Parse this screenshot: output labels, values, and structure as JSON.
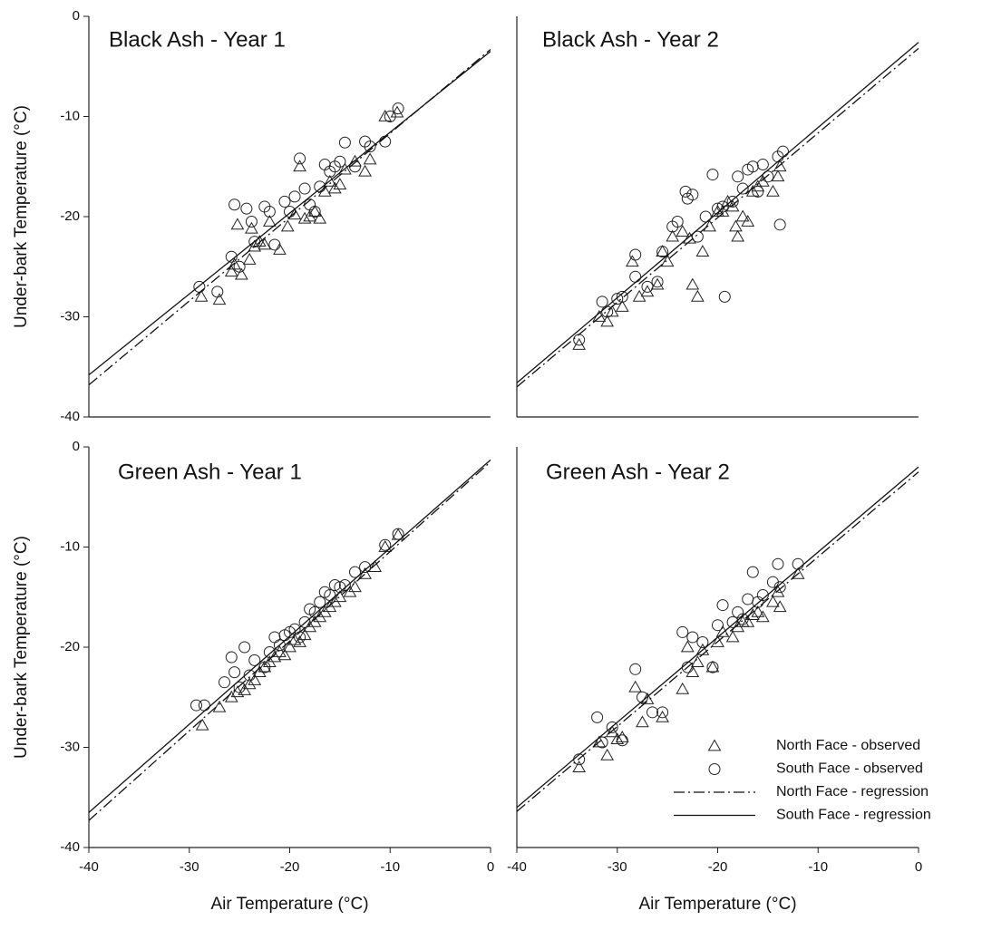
{
  "chart_data": [
    {
      "type": "scatter",
      "title": "Black Ash - Year 1",
      "ylabel": "Under-bark Temperature (°C)",
      "xlim": [
        -40,
        0
      ],
      "ylim": [
        -40,
        0
      ],
      "yticks": [
        0,
        -10,
        -20,
        -30,
        -40
      ],
      "series": [
        {
          "marker": "triangle",
          "x": [
            -28.8,
            -27,
            -25.8,
            -25.2,
            -24.8,
            -24,
            -23.5,
            -23,
            -22.5,
            -22,
            -21,
            -20.2,
            -19.5,
            -19,
            -18.5,
            -18,
            -17.5,
            -17,
            -16.5,
            -16,
            -15.5,
            -15,
            -14.5,
            -13.5,
            -12.5,
            -12,
            -10.5,
            -9.3,
            -25.5,
            -23.8
          ],
          "values": [
            -28,
            -28.3,
            -25.5,
            -20.8,
            -25.8,
            -24.3,
            -23,
            -22.5,
            -22.8,
            -20.5,
            -23.3,
            -21,
            -19.8,
            -15,
            -20.2,
            -20,
            -19.5,
            -20.2,
            -17.5,
            -16.5,
            -17.2,
            -16.8,
            -15.3,
            -14.5,
            -15.5,
            -14.3,
            -10,
            -9.6,
            -24.8,
            -21.2
          ]
        },
        {
          "marker": "circle",
          "x": [
            -29,
            -27.2,
            -25.8,
            -25.5,
            -25,
            -24.3,
            -23.5,
            -22.5,
            -22,
            -21.5,
            -20.5,
            -20,
            -19.5,
            -19,
            -18.5,
            -18,
            -17.5,
            -17,
            -16.5,
            -16,
            -15.5,
            -15,
            -14.5,
            -13.5,
            -12.5,
            -12,
            -10.5,
            -10,
            -9.2,
            -23.8
          ],
          "values": [
            -27,
            -27.5,
            -24,
            -18.8,
            -25,
            -19.2,
            -22.5,
            -19,
            -19.5,
            -22.8,
            -18.5,
            -19.5,
            -18,
            -14.2,
            -17.2,
            -18.8,
            -19.5,
            -17,
            -14.8,
            -15.5,
            -15,
            -14.5,
            -12.6,
            -15,
            -12.5,
            -13,
            -12.5,
            -10,
            -9.2,
            -20.5
          ]
        },
        {
          "style": "dashdot",
          "x": [
            -40,
            0
          ],
          "values": [
            -36.8,
            -3.3
          ]
        },
        {
          "style": "solid",
          "x": [
            -40,
            0
          ],
          "values": [
            -35.8,
            -3.5
          ]
        }
      ]
    },
    {
      "type": "scatter",
      "title": "Black Ash - Year 2",
      "xlim": [
        -40,
        0
      ],
      "ylim": [
        -40,
        0
      ],
      "series": [
        {
          "marker": "triangle",
          "x": [
            -33.8,
            -31.8,
            -31,
            -30.5,
            -29.5,
            -28.5,
            -27.8,
            -27,
            -26,
            -25.5,
            -25,
            -24.5,
            -23.5,
            -22.8,
            -22,
            -21.5,
            -20.8,
            -20,
            -19.5,
            -19,
            -18.5,
            -18,
            -17.5,
            -17,
            -16.5,
            -16,
            -15.5,
            -14.5,
            -14,
            -13.8,
            -22.5,
            -18.2
          ],
          "values": [
            -32.8,
            -30,
            -30.5,
            -29.5,
            -29,
            -24.5,
            -28,
            -27.5,
            -26.8,
            -23.5,
            -24.5,
            -22,
            -21.5,
            -22.2,
            -28,
            -23.5,
            -21,
            -19.5,
            -19.5,
            -18.5,
            -19,
            -22,
            -20,
            -20.5,
            -17.5,
            -17,
            -16.5,
            -17.5,
            -16,
            -15,
            -26.8,
            -21
          ]
        },
        {
          "marker": "circle",
          "x": [
            -33.8,
            -31.5,
            -31,
            -30,
            -29.5,
            -28.2,
            -27,
            -26,
            -25.5,
            -24.5,
            -24,
            -23.2,
            -23,
            -22.5,
            -22,
            -21.2,
            -20.5,
            -20,
            -19.5,
            -19.3,
            -18.5,
            -18,
            -17.5,
            -17,
            -16.5,
            -16,
            -15.5,
            -15,
            -14,
            -13.8,
            -13.5,
            -28.2
          ],
          "values": [
            -32.3,
            -28.5,
            -29.5,
            -28.2,
            -28,
            -23.8,
            -27,
            -26.5,
            -23.5,
            -21,
            -20.5,
            -17.5,
            -18.2,
            -17.8,
            -22,
            -20,
            -15.8,
            -19.2,
            -19,
            -28,
            -18.5,
            -16,
            -17.2,
            -15.3,
            -15,
            -17.5,
            -14.8,
            -16,
            -14,
            -20.8,
            -13.5,
            -26
          ]
        },
        {
          "style": "dashdot",
          "x": [
            -40,
            0
          ],
          "values": [
            -37,
            -3.2
          ]
        },
        {
          "style": "solid",
          "x": [
            -40,
            0
          ],
          "values": [
            -36.6,
            -2.6
          ]
        }
      ]
    },
    {
      "type": "scatter",
      "title": "Green Ash - Year 1",
      "ylabel": "Under-bark Temperature (°C)",
      "xlabel": "Air Temperature (°C)",
      "xlim": [
        -40,
        0
      ],
      "ylim": [
        -40,
        0
      ],
      "xticks": [
        -40,
        -30,
        -20,
        -10,
        0
      ],
      "yticks": [
        0,
        -10,
        -20,
        -30,
        -40
      ],
      "series": [
        {
          "marker": "triangle",
          "x": [
            -28.7,
            -27,
            -25.8,
            -25.2,
            -24.5,
            -24,
            -23.5,
            -23,
            -22.5,
            -22,
            -21.5,
            -21,
            -20.5,
            -20,
            -19.5,
            -19,
            -18.5,
            -18,
            -17.5,
            -17,
            -16.5,
            -16,
            -15.5,
            -15,
            -14,
            -13.5,
            -12.5,
            -11.5,
            -10.5,
            -9.2
          ],
          "values": [
            -27.8,
            -26,
            -25,
            -24.5,
            -24.3,
            -23.7,
            -23.3,
            -22.5,
            -22,
            -21.5,
            -21,
            -20.5,
            -20.8,
            -20,
            -19.3,
            -19.5,
            -18.8,
            -18,
            -17.5,
            -17,
            -16.5,
            -16,
            -15.5,
            -15,
            -14.5,
            -14,
            -12.7,
            -12,
            -10,
            -8.8
          ]
        },
        {
          "marker": "circle",
          "x": [
            -29.3,
            -28.5,
            -26.5,
            -25.8,
            -25.5,
            -25,
            -24.5,
            -24,
            -23.5,
            -22.5,
            -22,
            -21.5,
            -21,
            -20.5,
            -20,
            -19.5,
            -19,
            -18.5,
            -18,
            -17.5,
            -17,
            -16.5,
            -16,
            -15.5,
            -15,
            -14.5,
            -13.5,
            -12.5,
            -10.5,
            -9.2
          ],
          "values": [
            -25.8,
            -25.8,
            -23.5,
            -21,
            -22.5,
            -24,
            -20,
            -22.8,
            -21.3,
            -22,
            -20.5,
            -19,
            -19.8,
            -18.8,
            -18.5,
            -18.2,
            -19,
            -17.5,
            -16.2,
            -16.5,
            -15.5,
            -14.5,
            -14.8,
            -13.8,
            -14,
            -13.8,
            -12.5,
            -12,
            -9.8,
            -8.7
          ]
        },
        {
          "style": "dashdot",
          "x": [
            -40,
            0
          ],
          "values": [
            -37.3,
            -1.5
          ]
        },
        {
          "style": "solid",
          "x": [
            -40,
            0
          ],
          "values": [
            -36.5,
            -1.3
          ]
        }
      ]
    },
    {
      "type": "scatter",
      "title": "Green Ash - Year 2",
      "xlabel": "Air Temperature (°C)",
      "xlim": [
        -40,
        0
      ],
      "ylim": [
        -40,
        0
      ],
      "xticks": [
        -40,
        -30,
        -20,
        -10,
        0
      ],
      "legend": "lower right",
      "series": [
        {
          "name": "North Face - observed",
          "marker": "triangle",
          "x": [
            -33.8,
            -31.8,
            -31,
            -30.5,
            -30,
            -29.5,
            -28.2,
            -27.5,
            -27,
            -25.5,
            -23.5,
            -23,
            -22.5,
            -22,
            -21.5,
            -20.5,
            -20,
            -19.5,
            -18.5,
            -18,
            -17.5,
            -17,
            -16.5,
            -16,
            -15.5,
            -14.5,
            -14,
            -13.8,
            -12
          ],
          "values": [
            -32,
            -29.5,
            -30.8,
            -28.5,
            -29.2,
            -29,
            -24,
            -27.5,
            -25.2,
            -27,
            -24.2,
            -20,
            -22.5,
            -21.5,
            -20.3,
            -22,
            -19.5,
            -18.5,
            -19,
            -18,
            -17.5,
            -17.5,
            -16.8,
            -16.5,
            -17,
            -15.5,
            -14.5,
            -16,
            -12.7
          ]
        },
        {
          "name": "South Face - observed",
          "marker": "circle",
          "x": [
            -33.8,
            -32,
            -31.5,
            -30.5,
            -29.5,
            -28.2,
            -27.5,
            -26.5,
            -25.5,
            -23.5,
            -23,
            -22.5,
            -21.5,
            -20.5,
            -20,
            -19.5,
            -18.5,
            -18,
            -17.5,
            -17,
            -16.5,
            -16,
            -15.5,
            -14.5,
            -14,
            -13.8,
            -12
          ],
          "values": [
            -31.2,
            -27,
            -29.5,
            -28,
            -29.3,
            -22.2,
            -25,
            -26.5,
            -26.5,
            -18.5,
            -22,
            -19,
            -19.5,
            -22,
            -17.8,
            -15.8,
            -17.5,
            -16.5,
            -17.2,
            -15.2,
            -12.5,
            -15.5,
            -14.8,
            -13.5,
            -11.7,
            -14,
            -11.7
          ]
        },
        {
          "name": "North Face - regression",
          "style": "dashdot",
          "x": [
            -40,
            0
          ],
          "values": [
            -36.4,
            -2.5
          ]
        },
        {
          "name": "South Face - regression",
          "style": "solid",
          "x": [
            -40,
            0
          ],
          "values": [
            -36,
            -2
          ]
        }
      ]
    }
  ]
}
